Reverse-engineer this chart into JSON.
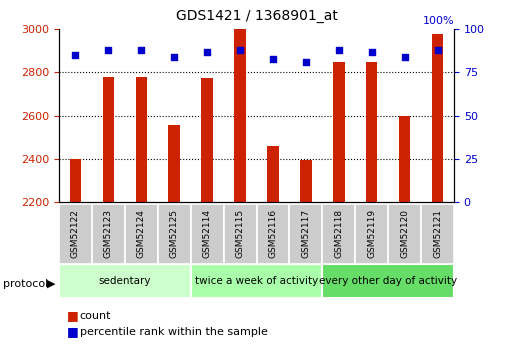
{
  "title": "GDS1421 / 1368901_at",
  "samples": [
    "GSM52122",
    "GSM52123",
    "GSM52124",
    "GSM52125",
    "GSM52114",
    "GSM52115",
    "GSM52116",
    "GSM52117",
    "GSM52118",
    "GSM52119",
    "GSM52120",
    "GSM52121"
  ],
  "counts": [
    2400,
    2780,
    2780,
    2555,
    2775,
    3000,
    2460,
    2395,
    2850,
    2850,
    2600,
    2980
  ],
  "percentile_ranks": [
    85,
    88,
    88,
    84,
    87,
    88,
    83,
    81,
    88,
    87,
    84,
    88
  ],
  "ylim_left": [
    2200,
    3000
  ],
  "ylim_right": [
    0,
    100
  ],
  "yticks_left": [
    2200,
    2400,
    2600,
    2800,
    3000
  ],
  "yticks_right": [
    0,
    25,
    50,
    75,
    100
  ],
  "bar_color": "#cc2200",
  "dot_color": "#0000cc",
  "bar_width": 0.35,
  "group_boundaries": [
    {
      "label": "sedentary",
      "start": 0,
      "end": 3,
      "color": "#ccffcc"
    },
    {
      "label": "twice a week of activity",
      "start": 4,
      "end": 7,
      "color": "#aaffaa"
    },
    {
      "label": "every other day of activity",
      "start": 8,
      "end": 11,
      "color": "#66dd66"
    }
  ],
  "protocol_label": "protocol",
  "legend_count_label": "count",
  "legend_percentile_label": "percentile rank within the sample",
  "tick_box_color": "#cccccc",
  "right_axis_label": "100%"
}
